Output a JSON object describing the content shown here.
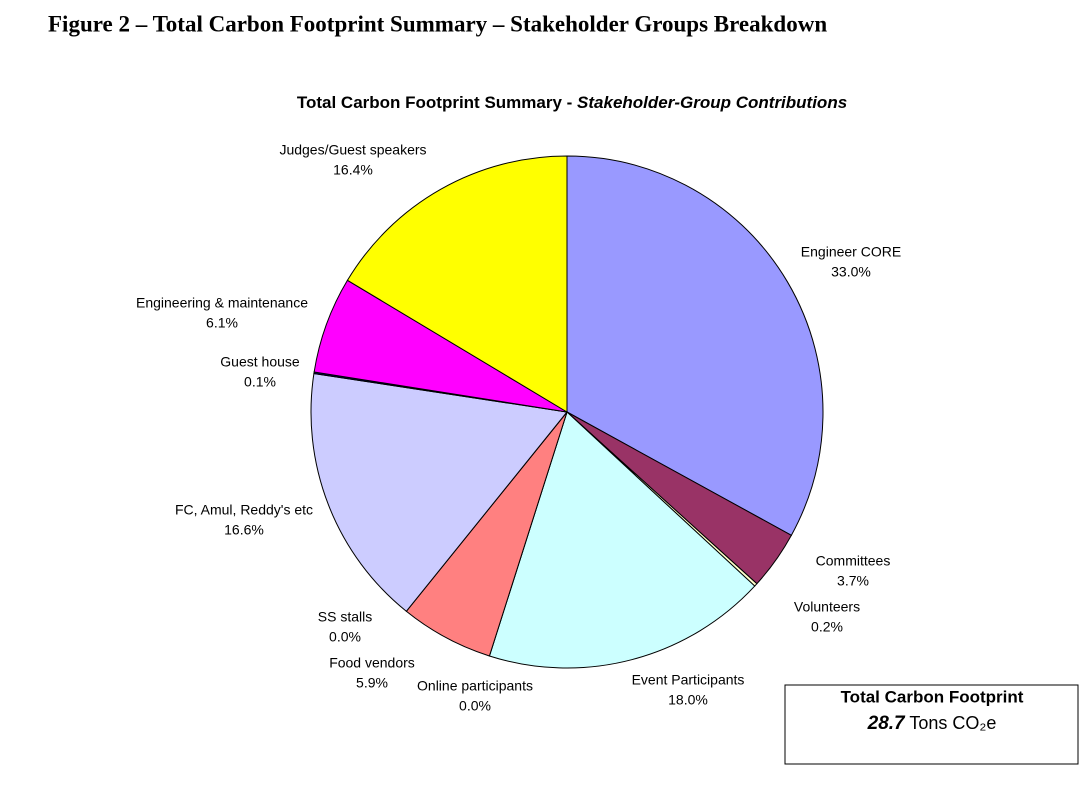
{
  "figure_caption": "Figure 2 – Total Carbon Footprint Summary – Stakeholder Groups Breakdown",
  "chart_data": {
    "type": "pie",
    "title": "Total Carbon Footprint Summary -",
    "subtitle": "Stakeholder-Group Contributions",
    "categories": [
      "Engineer CORE",
      "Committees",
      "Volunteers",
      "Event Participants",
      "Online participants",
      "Food vendors",
      "SS stalls",
      "FC, Amul, Reddy's etc",
      "Guest house",
      "Engineering & maintenance",
      "Judges/Guest speakers"
    ],
    "values": [
      33.0,
      3.7,
      0.2,
      18.0,
      0.0,
      5.9,
      0.0,
      16.6,
      0.1,
      6.1,
      16.4
    ],
    "value_labels": [
      "33.0%",
      "3.7%",
      "0.2%",
      "18.0%",
      "0.0%",
      "5.9%",
      "0.0%",
      "16.6%",
      "0.1%",
      "6.1%",
      "16.4%"
    ],
    "colors": [
      "#9999ff",
      "#993366",
      "#ffffcc",
      "#ccffff",
      "#ffffff",
      "#ff8080",
      "#ffffff",
      "#ccccff",
      "#000080",
      "#ff00ff",
      "#ffff00"
    ],
    "annotation": {
      "title": "Total Carbon Footprint",
      "value": 28.7,
      "unit": "Tons CO₂e"
    }
  }
}
